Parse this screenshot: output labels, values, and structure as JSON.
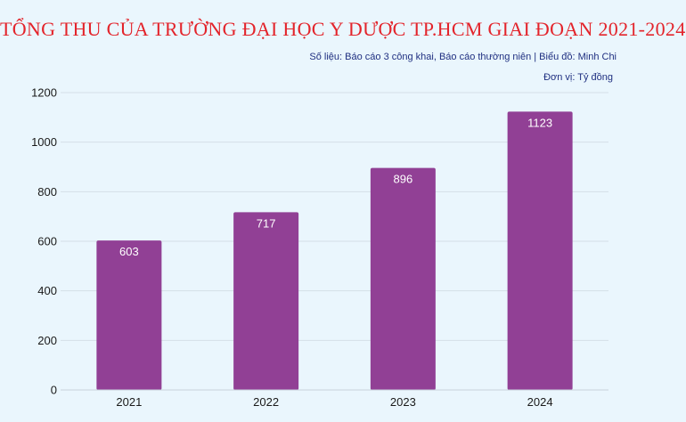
{
  "header": {
    "title": "TỔNG THU CỦA TRƯỜNG ĐẠI HỌC Y DƯỢC TP.HCM GIAI ĐOẠN 2021-2024",
    "source": "Số liệu: Báo cáo 3 công khai, Báo cáo thường niên | Biểu đồ: Minh Chi",
    "unit": "Đơn vị: Tỷ đồng"
  },
  "colors": {
    "background": "#eaf6fd",
    "title": "#e3242b",
    "bar": "#914095",
    "subtext": "#1f2f80"
  },
  "chart_data": {
    "type": "bar",
    "title": "TỔNG THU CỦA TRƯỜNG ĐẠI HỌC Y DƯỢC TP.HCM GIAI ĐOẠN 2021-2024",
    "categories": [
      "2021",
      "2022",
      "2023",
      "2024"
    ],
    "values": [
      603,
      717,
      896,
      1123
    ],
    "data_labels": [
      "603",
      "717",
      "896",
      "1123"
    ],
    "yticks": [
      0,
      200,
      400,
      600,
      800,
      1000,
      1200
    ],
    "ytick_labels": [
      "0",
      "200",
      "400",
      "600",
      "800",
      "1000",
      "1200"
    ],
    "ylim": [
      0,
      1200
    ],
    "xlabel": "",
    "ylabel": "",
    "grid": true,
    "legend": "none"
  }
}
